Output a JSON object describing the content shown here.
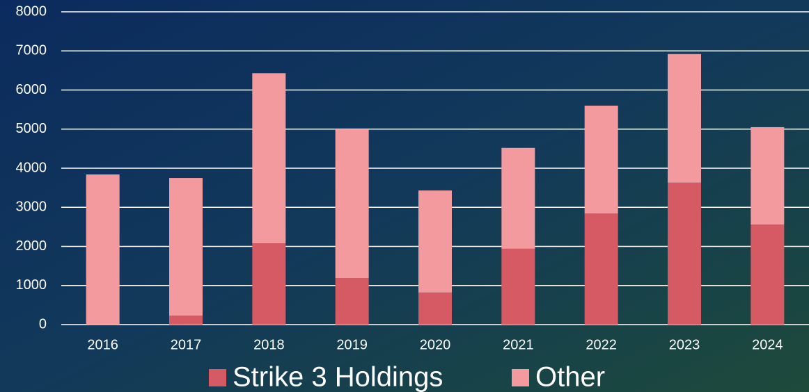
{
  "chart_data": {
    "type": "bar",
    "stacked": true,
    "categories": [
      "2016",
      "2017",
      "2018",
      "2019",
      "2020",
      "2021",
      "2022",
      "2023",
      "2024"
    ],
    "series": [
      {
        "name": "Strike 3 Holdings",
        "color": "#d55a63",
        "values": [
          0,
          230,
          2080,
          1190,
          820,
          1940,
          2840,
          3630,
          2560
        ]
      },
      {
        "name": "Other",
        "color": "#f39a9f",
        "values": [
          3840,
          3520,
          4350,
          3810,
          2610,
          2580,
          2760,
          3290,
          2490
        ]
      }
    ],
    "ylim": [
      0,
      8000
    ],
    "yticks": [
      0,
      1000,
      2000,
      3000,
      4000,
      5000,
      6000,
      7000,
      8000
    ],
    "grid": true,
    "legend": "bottom"
  }
}
